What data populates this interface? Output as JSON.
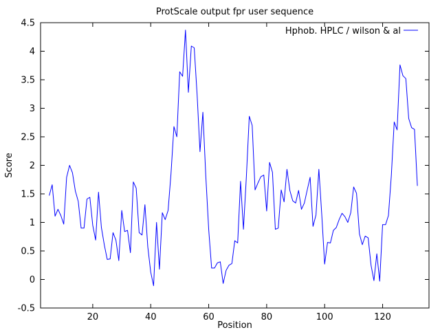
{
  "chart_data": {
    "type": "line",
    "title": "ProtScale output fpr user sequence",
    "xlabel": "Position",
    "ylabel": "Score",
    "xlim": [
      2,
      136
    ],
    "ylim": [
      -0.5,
      4.5
    ],
    "xticks": [
      20,
      40,
      60,
      80,
      100,
      120
    ],
    "xtick_labels": [
      "20",
      "40",
      "60",
      "80",
      "100",
      "120"
    ],
    "yticks": [
      -0.5,
      0,
      0.5,
      1,
      1.5,
      2,
      2.5,
      3,
      3.5,
      4,
      4.5
    ],
    "ytick_labels": [
      "-0.5",
      "0",
      "0.5",
      "1",
      "1.5",
      "2",
      "2.5",
      "3",
      "3.5",
      "4",
      "4.5"
    ],
    "grid": false,
    "legend_position": "top-right",
    "series": [
      {
        "name": "Hphob. HPLC   /  wilson &  al",
        "color": "#0000ff",
        "x": [
          5,
          6,
          7,
          8,
          9,
          10,
          11,
          12,
          13,
          14,
          15,
          16,
          17,
          18,
          19,
          20,
          21,
          22,
          23,
          24,
          25,
          26,
          27,
          28,
          29,
          30,
          31,
          32,
          33,
          34,
          35,
          36,
          37,
          38,
          39,
          40,
          41,
          42,
          43,
          44,
          45,
          46,
          47,
          48,
          49,
          50,
          51,
          52,
          53,
          54,
          55,
          56,
          57,
          58,
          59,
          60,
          61,
          62,
          63,
          64,
          65,
          66,
          67,
          68,
          69,
          70,
          71,
          72,
          73,
          74,
          75,
          76,
          77,
          78,
          79,
          80,
          81,
          82,
          83,
          84,
          85,
          86,
          87,
          88,
          89,
          90,
          91,
          92,
          93,
          94,
          95,
          96,
          97,
          98,
          99,
          100,
          101,
          102,
          103,
          104,
          105,
          106,
          107,
          108,
          109,
          110,
          111,
          112,
          113,
          114,
          115,
          116,
          117,
          118,
          119,
          120,
          121,
          122,
          123,
          124,
          125,
          126,
          127,
          128,
          129,
          130,
          131,
          132
        ],
        "y": [
          1.47,
          1.66,
          1.11,
          1.23,
          1.12,
          0.97,
          1.79,
          2.0,
          1.87,
          1.55,
          1.37,
          0.9,
          0.9,
          1.41,
          1.44,
          0.95,
          0.69,
          1.53,
          0.91,
          0.6,
          0.35,
          0.36,
          0.82,
          0.69,
          0.33,
          1.21,
          0.84,
          0.86,
          0.47,
          1.71,
          1.6,
          0.82,
          0.78,
          1.31,
          0.57,
          0.13,
          -0.11,
          1.0,
          0.18,
          1.17,
          1.05,
          1.21,
          1.85,
          2.68,
          2.5,
          3.64,
          3.56,
          4.37,
          3.28,
          4.09,
          4.06,
          3.24,
          2.24,
          2.93,
          1.82,
          0.87,
          0.2,
          0.2,
          0.29,
          0.31,
          -0.07,
          0.16,
          0.25,
          0.28,
          0.68,
          0.64,
          1.72,
          0.88,
          1.81,
          2.86,
          2.7,
          1.57,
          1.69,
          1.8,
          1.83,
          1.2,
          2.05,
          1.88,
          0.88,
          0.9,
          1.57,
          1.36,
          1.93,
          1.56,
          1.38,
          1.34,
          1.56,
          1.23,
          1.34,
          1.57,
          1.79,
          0.93,
          1.13,
          1.93,
          1.14,
          0.27,
          0.65,
          0.64,
          0.86,
          0.91,
          1.05,
          1.16,
          1.1,
          1.0,
          1.17,
          1.62,
          1.51,
          0.8,
          0.61,
          0.76,
          0.73,
          0.25,
          -0.02,
          0.45,
          -0.03,
          0.96,
          0.96,
          1.12,
          1.82,
          2.76,
          2.62,
          3.76,
          3.57,
          3.52,
          2.82,
          2.66,
          2.63,
          1.64
        ]
      }
    ]
  }
}
